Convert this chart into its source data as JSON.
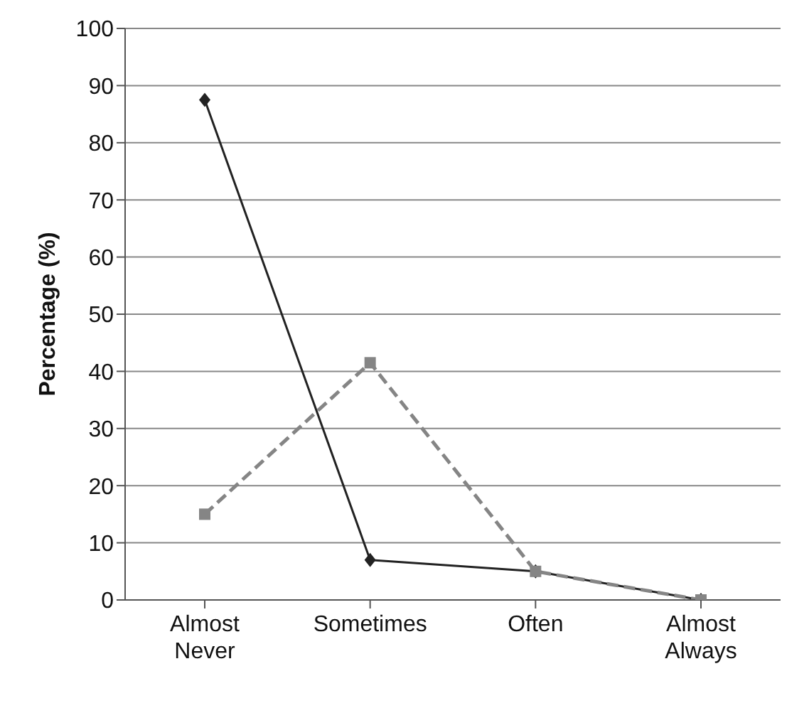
{
  "chart_data": {
    "type": "line",
    "ylabel": "Percentage (%)",
    "categories": [
      "Almost Never",
      "Sometimes",
      "Often",
      "Almost Always"
    ],
    "series": [
      {
        "color": "#222222",
        "values": [
          87.5,
          7,
          5,
          0
        ],
        "marker": "diamond",
        "line_style": "solid"
      },
      {
        "color": "#858585",
        "values": [
          15,
          41.5,
          5,
          0
        ],
        "marker": "square",
        "line_style": "dashed"
      }
    ],
    "ylim": [
      0,
      100
    ],
    "yticks": [
      0,
      10,
      20,
      30,
      40,
      50,
      60,
      70,
      80,
      90,
      100
    ],
    "grid": "y",
    "legend": false
  }
}
